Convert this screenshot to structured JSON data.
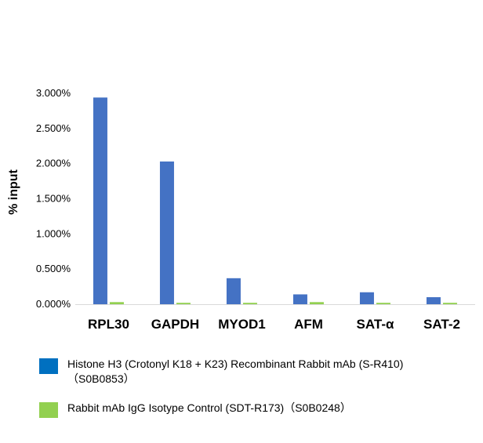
{
  "chart_data": {
    "type": "bar",
    "categories": [
      "RPL30",
      "GAPDH",
      "MYOD1",
      "AFM",
      "SAT-α",
      "SAT-2"
    ],
    "series": [
      {
        "name": "Histone H3 (Crotonyl K18 + K23) Recombinant Rabbit mAb (S-R410)\n（S0B0853）",
        "color": "#4472c4",
        "values": [
          2.94,
          2.03,
          0.37,
          0.14,
          0.17,
          0.1
        ]
      },
      {
        "name": "Rabbit mAb IgG Isotype Control (SDT-R173)（S0B0248）",
        "color": "#92d050",
        "values": [
          0.03,
          0.02,
          0.02,
          0.03,
          0.02,
          0.02
        ]
      }
    ],
    "ylabel": "% input",
    "ylim": [
      0,
      3.0
    ],
    "yticks": [
      "0.000%",
      "0.500%",
      "1.000%",
      "1.500%",
      "2.000%",
      "2.500%",
      "3.000%"
    ],
    "grid": false,
    "legend": "bottom",
    "legend_colors": [
      "#0070c0",
      "#92d050"
    ]
  }
}
